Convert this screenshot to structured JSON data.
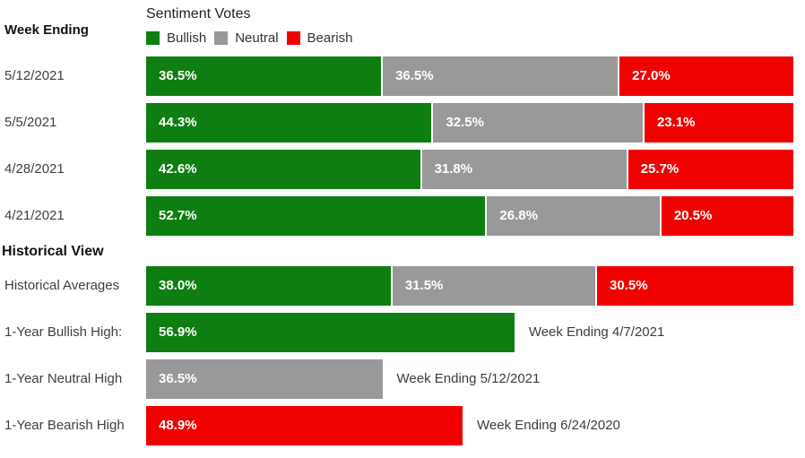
{
  "title": "Sentiment Votes",
  "colors": {
    "bullish": "#0e7e12",
    "neutral": "#999999",
    "bearish": "#f10000"
  },
  "legend": {
    "bullish_label": "Bullish",
    "neutral_label": "Neutral",
    "bearish_label": "Bearish"
  },
  "week": {
    "heading": "Week Ending",
    "rows": [
      {
        "label": "5/12/2021",
        "bullish": {
          "pct": 36.5,
          "text": "36.5%"
        },
        "neutral": {
          "pct": 36.5,
          "text": "36.5%"
        },
        "bearish": {
          "pct": 27.0,
          "text": "27.0%"
        }
      },
      {
        "label": "5/5/2021",
        "bullish": {
          "pct": 44.3,
          "text": "44.3%"
        },
        "neutral": {
          "pct": 32.5,
          "text": "32.5%"
        },
        "bearish": {
          "pct": 23.1,
          "text": "23.1%"
        }
      },
      {
        "label": "4/28/2021",
        "bullish": {
          "pct": 42.6,
          "text": "42.6%"
        },
        "neutral": {
          "pct": 31.8,
          "text": "31.8%"
        },
        "bearish": {
          "pct": 25.7,
          "text": "25.7%"
        }
      },
      {
        "label": "4/21/2021",
        "bullish": {
          "pct": 52.7,
          "text": "52.7%"
        },
        "neutral": {
          "pct": 26.8,
          "text": "26.8%"
        },
        "bearish": {
          "pct": 20.5,
          "text": "20.5%"
        }
      }
    ]
  },
  "historical": {
    "heading": "Historical View",
    "averages": {
      "label": "Historical Averages",
      "bullish": {
        "pct": 38.0,
        "text": "38.0%"
      },
      "neutral": {
        "pct": 31.5,
        "text": "31.5%"
      },
      "bearish": {
        "pct": 30.5,
        "text": "30.5%"
      }
    },
    "highs": [
      {
        "label": "1-Year Bullish High:",
        "pct": 56.9,
        "text": "56.9%",
        "annotation": "Week Ending 4/7/2021"
      },
      {
        "label": "1-Year Neutral High",
        "pct": 36.5,
        "text": "36.5%",
        "annotation": "Week Ending 5/12/2021"
      },
      {
        "label": "1-Year Bearish High",
        "pct": 48.9,
        "text": "48.9%",
        "annotation": "Week Ending 6/24/2020"
      }
    ]
  },
  "chart_data": {
    "type": "bar",
    "subtype": "horizontal-stacked",
    "title": "Sentiment Votes",
    "legend_position": "top",
    "legend_entries": [
      "Bullish",
      "Neutral",
      "Bearish"
    ],
    "series_colors": [
      "#0e7e12",
      "#999999",
      "#f10000"
    ],
    "categories": [
      "5/12/2021",
      "5/5/2021",
      "4/28/2021",
      "4/21/2021",
      "Historical Averages"
    ],
    "series": [
      {
        "name": "Bullish",
        "values": [
          36.5,
          44.3,
          42.6,
          52.7,
          38.0
        ]
      },
      {
        "name": "Neutral",
        "values": [
          36.5,
          32.5,
          31.8,
          26.8,
          31.5
        ]
      },
      {
        "name": "Bearish",
        "values": [
          27.0,
          23.1,
          25.7,
          20.5,
          30.5
        ]
      }
    ],
    "highs": [
      {
        "label": "1-Year Bullish High:",
        "series": "Bullish",
        "value": 56.9,
        "week_ending": "4/7/2021"
      },
      {
        "label": "1-Year Neutral High",
        "series": "Neutral",
        "value": 36.5,
        "week_ending": "5/12/2021"
      },
      {
        "label": "1-Year Bearish High",
        "series": "Bearish",
        "value": 48.9,
        "week_ending": "6/24/2020"
      }
    ],
    "xlim": [
      0,
      100
    ],
    "value_labels": "inside-left, percent, white bold",
    "grid": false
  }
}
